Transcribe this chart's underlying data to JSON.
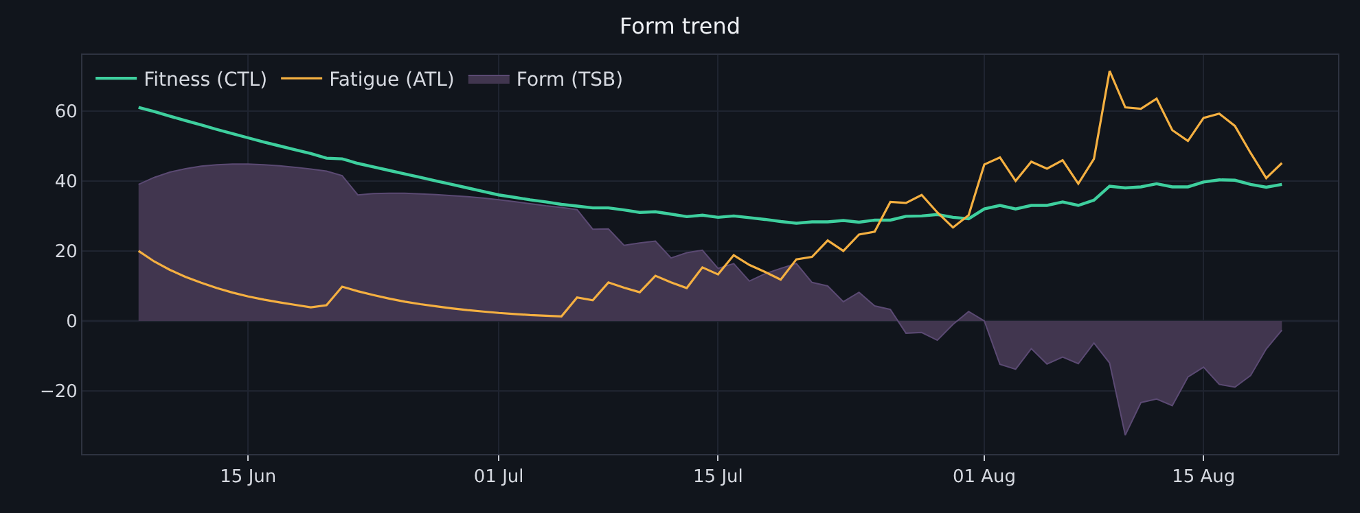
{
  "chart_data": {
    "type": "line",
    "title": "Form trend",
    "x": [
      "--06-08",
      "--06-09",
      "--06-10",
      "--06-11",
      "--06-12",
      "--06-13",
      "--06-14",
      "--06-15",
      "--06-16",
      "--06-17",
      "--06-18",
      "--06-19",
      "--06-20",
      "--06-21",
      "--06-22",
      "--06-23",
      "--06-24",
      "--06-25",
      "--06-26",
      "--06-27",
      "--06-28",
      "--06-29",
      "--06-30",
      "--07-01",
      "--07-02",
      "--07-03",
      "--07-04",
      "--07-05",
      "--07-06",
      "--07-07",
      "--07-08",
      "--07-09",
      "--07-10",
      "--07-11",
      "--07-12",
      "--07-13",
      "--07-14",
      "--07-15",
      "--07-16",
      "--07-17",
      "--07-18",
      "--07-19",
      "--07-20",
      "--07-21",
      "--07-22",
      "--07-23",
      "--07-24",
      "--07-25",
      "--07-26",
      "--07-27",
      "--07-28",
      "--07-29",
      "--07-30",
      "--07-31",
      "--08-01",
      "--08-02",
      "--08-03",
      "--08-04",
      "--08-05",
      "--08-06",
      "--08-07",
      "--08-08",
      "--08-09",
      "--08-10",
      "--08-11",
      "--08-12",
      "--08-13",
      "--08-14",
      "--08-15",
      "--08-16",
      "--08-17",
      "--08-18",
      "--08-19",
      "--08-20"
    ],
    "series": [
      {
        "name": "Fitness (CTL)",
        "color": "#3ecf9e",
        "values": [
          61,
          59.8,
          58.5,
          57.2,
          56,
          54.7,
          53.5,
          52.3,
          51.1,
          50,
          48.9,
          47.8,
          46.5,
          46.3,
          45,
          44,
          43,
          42,
          41,
          40,
          39,
          38,
          37,
          36,
          35.3,
          34.6,
          34,
          33.3,
          32.8,
          32.3,
          32.3,
          31.7,
          31,
          31.2,
          30.5,
          29.8,
          30.2,
          29.6,
          30,
          29.5,
          29,
          28.4,
          27.9,
          28.3,
          28.3,
          28.7,
          28.2,
          28.8,
          28.8,
          29.9,
          30,
          30.4,
          29.6,
          29.2,
          32,
          33,
          32,
          33,
          33,
          34,
          33,
          34.5,
          38.5,
          38,
          38.3,
          39.2,
          38.3,
          38.3,
          39.7,
          40.3,
          40.2,
          39,
          38.2,
          39
        ]
      },
      {
        "name": "Fatigue (ATL)",
        "color": "#f5b041",
        "values": [
          20,
          17,
          14.6,
          12.6,
          10.9,
          9.4,
          8.1,
          7,
          6.1,
          5.3,
          4.6,
          3.9,
          4.5,
          9.8,
          8.5,
          7.4,
          6.4,
          5.5,
          4.8,
          4.2,
          3.6,
          3.1,
          2.7,
          2.3,
          2,
          1.7,
          1.5,
          1.3,
          6.7,
          5.9,
          11,
          9.5,
          8.2,
          12.9,
          11,
          9.4,
          15.3,
          13.3,
          18.8,
          16,
          14,
          11.8,
          17.6,
          18.3,
          23,
          20,
          24.7,
          25.5,
          34,
          33.7,
          36,
          31,
          26.7,
          30.2,
          44.7,
          46.7,
          40,
          45.5,
          43.5,
          45.9,
          39.2,
          46.3,
          71.4,
          61,
          60.6,
          63.5,
          54.5,
          51.4,
          58,
          59.2,
          55.7,
          48,
          40.8,
          45.1
        ]
      },
      {
        "name": "Form (TSB)",
        "type": "area",
        "color": "#41364f",
        "values": [
          39,
          41,
          42.5,
          43.5,
          44.2,
          44.6,
          44.8,
          44.8,
          44.6,
          44.3,
          43.9,
          43.4,
          42.8,
          41.5,
          36,
          36.4,
          36.5,
          36.5,
          36.3,
          36.1,
          35.8,
          35.5,
          35.1,
          34.6,
          34.1,
          33.5,
          32.9,
          32.4,
          31.8,
          26.2,
          26.3,
          21.6,
          22.3,
          22.8,
          18,
          19.5,
          20.2,
          15,
          16.4,
          11.4,
          13.5,
          15,
          16.4,
          11,
          10,
          5.5,
          8.2,
          4.3,
          3.3,
          -3.5,
          -3.3,
          -5.5,
          -1,
          2.7,
          0,
          -12.4,
          -13.8,
          -7.9,
          -12.3,
          -10.3,
          -12.2,
          -6.3,
          -12,
          -32.6,
          -23.3,
          -22.3,
          -24.2,
          -16,
          -13.2,
          -18.1,
          -18.9,
          -15.6,
          -8,
          -2.6
        ]
      }
    ],
    "xlim": [
      "--06-04T10:00",
      "--08-23T14:00"
    ],
    "xticks": [
      {
        "value": "--06-15",
        "label": "15 Jun"
      },
      {
        "value": "--07-01",
        "label": "01 Jul"
      },
      {
        "value": "--07-15",
        "label": "15 Jul"
      },
      {
        "value": "--08-01",
        "label": "01 Aug"
      },
      {
        "value": "--08-15",
        "label": "15 Aug"
      }
    ],
    "ylim": [
      -38,
      76
    ],
    "yticks": [
      -20,
      0,
      20,
      40,
      60
    ],
    "ref_lines": [
      {
        "axis": "y",
        "value": 0,
        "color": "#2e3340"
      }
    ],
    "grid": true,
    "legend": "top left"
  }
}
